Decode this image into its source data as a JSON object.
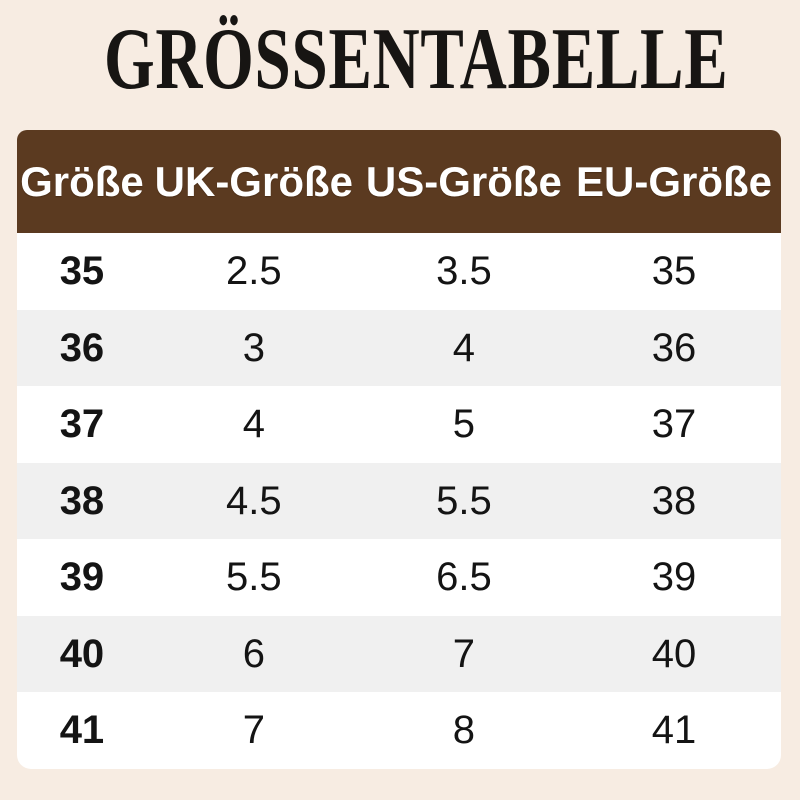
{
  "title": "GRÖSSENTABELLE",
  "colors": {
    "page_background": "#f7ece2",
    "header_background": "#5b3a20",
    "header_text": "#ffffff",
    "row_background": "#ffffff",
    "row_alt_background": "#f0f0f0",
    "data_text": "#141414",
    "title_text": "#171513"
  },
  "table": {
    "columns": [
      "Größe",
      "UK-Größe",
      "US-Größe",
      "EU-Größe"
    ],
    "rows": [
      [
        "35",
        "2.5",
        "3.5",
        "35"
      ],
      [
        "36",
        "3",
        "4",
        "36"
      ],
      [
        "37",
        "4",
        "5",
        "37"
      ],
      [
        "38",
        "4.5",
        "5.5",
        "38"
      ],
      [
        "39",
        "5.5",
        "6.5",
        "39"
      ],
      [
        "40",
        "6",
        "7",
        "40"
      ],
      [
        "41",
        "7",
        "8",
        "41"
      ]
    ]
  },
  "chart_data": {
    "type": "table",
    "title": "GRÖSSENTABELLE",
    "columns": [
      "Größe",
      "UK-Größe",
      "US-Größe",
      "EU-Größe"
    ],
    "rows": [
      [
        "35",
        "2.5",
        "3.5",
        "35"
      ],
      [
        "36",
        "3",
        "4",
        "36"
      ],
      [
        "37",
        "4",
        "5",
        "37"
      ],
      [
        "38",
        "4.5",
        "5.5",
        "38"
      ],
      [
        "39",
        "5.5",
        "6.5",
        "39"
      ],
      [
        "40",
        "6",
        "7",
        "40"
      ],
      [
        "41",
        "7",
        "8",
        "41"
      ]
    ],
    "layout": {
      "striped_rows": true,
      "first_column_bold": true,
      "header_style": "brown band, white bold text, rounded top corners"
    }
  }
}
